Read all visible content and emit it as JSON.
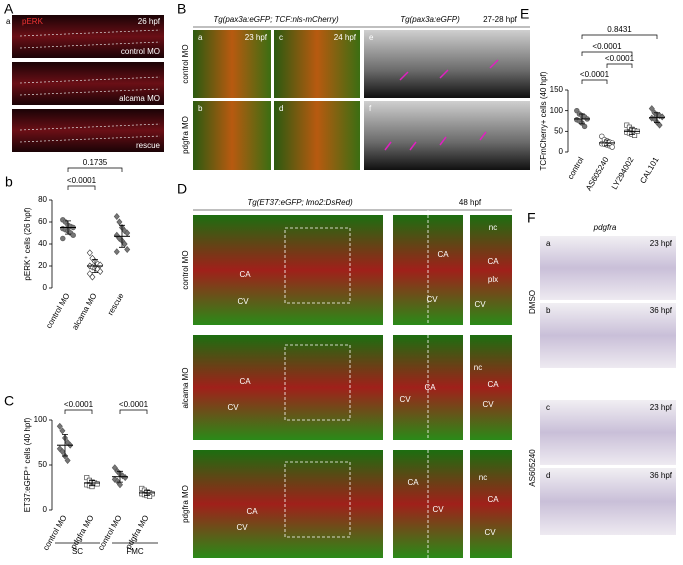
{
  "panel_A": {
    "letter": "A",
    "sub": "a",
    "time": "26 hpf",
    "rows": [
      "control MO",
      "alcama MO",
      "rescue"
    ]
  },
  "panel_B": {
    "letter": "B",
    "title_left": "Tg(pax3a:eGFP; TCF:nls-mCherry)",
    "title_right": "Tg(pax3a:eGFP)",
    "time_right": "27-28 hpf",
    "rows": [
      "control MO",
      "pdgfra MO"
    ],
    "subs": [
      "a",
      "c",
      "b",
      "d",
      "e",
      "f"
    ],
    "times": [
      "23 hpf",
      "24 hpf"
    ]
  },
  "panel_D": {
    "letter": "D",
    "title": "Tg(ET37:eGFP; lmo2:DsRed)",
    "time": "48 hpf",
    "rows": [
      "control MO",
      "alcama MO",
      "pdgfra MO"
    ],
    "annotations": [
      "CA",
      "CV",
      "CA",
      "CV",
      "nc",
      "CA",
      "plx",
      "CV",
      "CA",
      "CV",
      "CV",
      "CA",
      "nc",
      "CA",
      "CV",
      "CA",
      "CV",
      "CA",
      "CV",
      "nc",
      "CA",
      "CV"
    ]
  },
  "panel_F": {
    "letter": "F",
    "gene": "pdgfra",
    "rows": [
      "DMSO",
      "AS605240"
    ],
    "subs": [
      "a",
      "b",
      "c",
      "d"
    ],
    "times": [
      "23 hpf",
      "36 hpf",
      "23 hpf",
      "36 hpf"
    ]
  },
  "chart_data": [
    {
      "type": "dot",
      "panel": "b",
      "ylabel": "pERK⁺ cells (26 hpf)",
      "categories": [
        "control MO",
        "alcama MO",
        "rescue"
      ],
      "values": [
        [
          62,
          60,
          57,
          56,
          55,
          54,
          53,
          52,
          50,
          48,
          45
        ],
        [
          32,
          27,
          24,
          22,
          21,
          20,
          19,
          18,
          17,
          15,
          13,
          10
        ],
        [
          65,
          60,
          55,
          52,
          50,
          48,
          45,
          43,
          40,
          35,
          33
        ]
      ],
      "means": [
        55,
        20,
        47
      ],
      "sds": [
        6,
        6,
        10
      ],
      "markers": [
        "circle",
        "open-diamond",
        "diamond"
      ],
      "color": "#777777",
      "ylim": [
        0,
        80
      ],
      "yticks": [
        0,
        20,
        40,
        60,
        80
      ],
      "p_values": [
        "0.1735",
        "<0.0001"
      ]
    },
    {
      "type": "dot",
      "panel": "C",
      "ylabel": "ET37:eGFP⁺ cells (40 hpf)",
      "categories": [
        "control MO",
        "pdgfra MO",
        "control MO",
        "pdgfra MO"
      ],
      "groups": [
        "SC",
        "FMC"
      ],
      "values": [
        [
          93,
          88,
          80,
          75,
          72,
          68,
          65,
          60,
          55
        ],
        [
          36,
          33,
          31,
          30,
          29,
          28,
          27,
          26
        ],
        [
          47,
          43,
          40,
          38,
          36,
          34,
          32,
          28
        ],
        [
          24,
          22,
          20,
          19,
          18,
          18,
          17,
          16,
          15
        ]
      ],
      "means": [
        72,
        30,
        37,
        19
      ],
      "sds": [
        12,
        3,
        6,
        3
      ],
      "markers": [
        "diamond",
        "open-square",
        "diamond",
        "open-square"
      ],
      "color": "#777777",
      "ylim": [
        0,
        100
      ],
      "yticks": [
        0,
        50,
        100
      ],
      "p_values": [
        "<0.0001",
        "<0.0001"
      ]
    },
    {
      "type": "dot",
      "panel": "E",
      "ylabel": "TCFmCherry+ cells (40 hpf)",
      "categories": [
        "control",
        "AS605240",
        "LY294002",
        "CAL101"
      ],
      "values": [
        [
          100,
          92,
          88,
          85,
          80,
          78,
          75,
          70,
          62
        ],
        [
          38,
          30,
          27,
          24,
          22,
          20,
          19,
          17,
          15,
          12
        ],
        [
          65,
          60,
          55,
          52,
          50,
          48,
          46,
          43,
          40
        ],
        [
          105,
          95,
          90,
          88,
          85,
          82,
          80,
          72,
          65
        ]
      ],
      "means": [
        80,
        22,
        50,
        83
      ],
      "sds": [
        12,
        7,
        8,
        12
      ],
      "markers": [
        "circle",
        "open-circle",
        "open-square",
        "diamond"
      ],
      "color": "#777777",
      "ylim": [
        0,
        150
      ],
      "yticks": [
        0,
        50,
        100,
        150
      ],
      "p_values": [
        "0.8431",
        "<0.0001",
        "<0.0001",
        "<0.0001"
      ]
    }
  ]
}
